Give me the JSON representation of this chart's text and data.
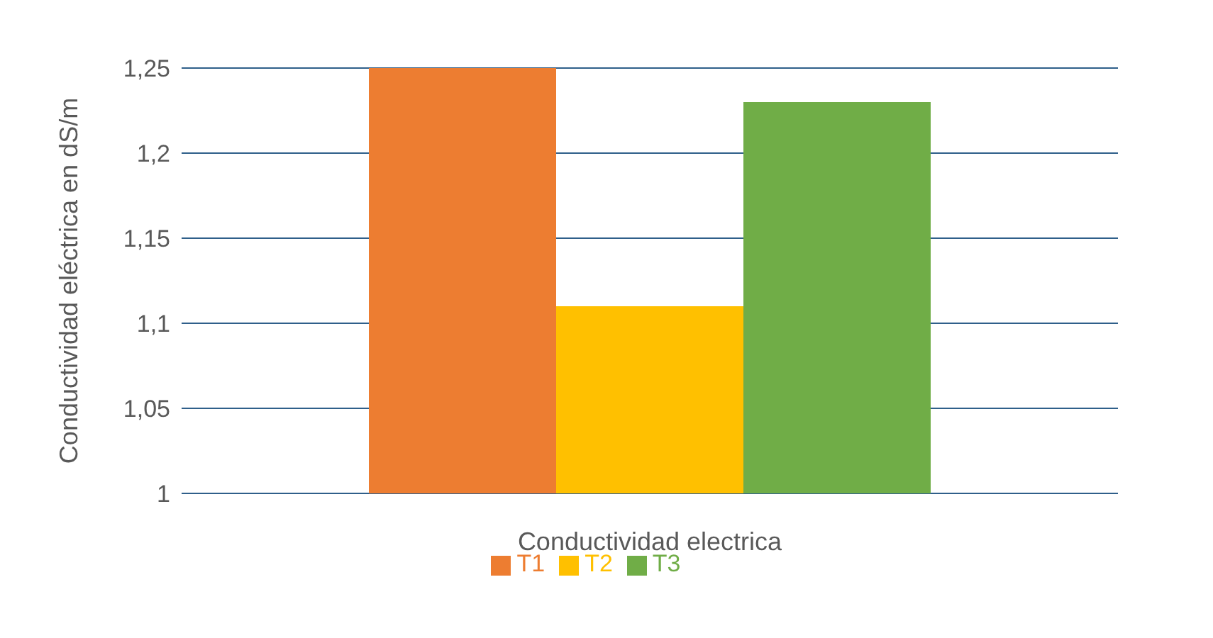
{
  "chart_data": {
    "type": "bar",
    "xlabel": "Conductividad electrica",
    "ylabel": "Conductividad eléctrica en dS/m",
    "categories": [
      null
    ],
    "series": [
      {
        "name": "T1",
        "color": "#ed7d31",
        "values": [
          1.25
        ]
      },
      {
        "name": "T2",
        "color": "#ffc000",
        "values": [
          1.11
        ]
      },
      {
        "name": "T3",
        "color": "#70ad47",
        "values": [
          1.23
        ]
      }
    ],
    "ylim": [
      1,
      1.25
    ],
    "yticks": [
      1,
      {
        "value": 1.05,
        "label": "1,05"
      },
      {
        "value": 1.1,
        "label": "1,1"
      },
      {
        "value": 1.15,
        "label": "1,15"
      },
      {
        "value": 1.2,
        "label": "1,2"
      },
      {
        "value": 1.25,
        "label": "1,25"
      }
    ],
    "grid": "y",
    "legend": "bottom"
  }
}
